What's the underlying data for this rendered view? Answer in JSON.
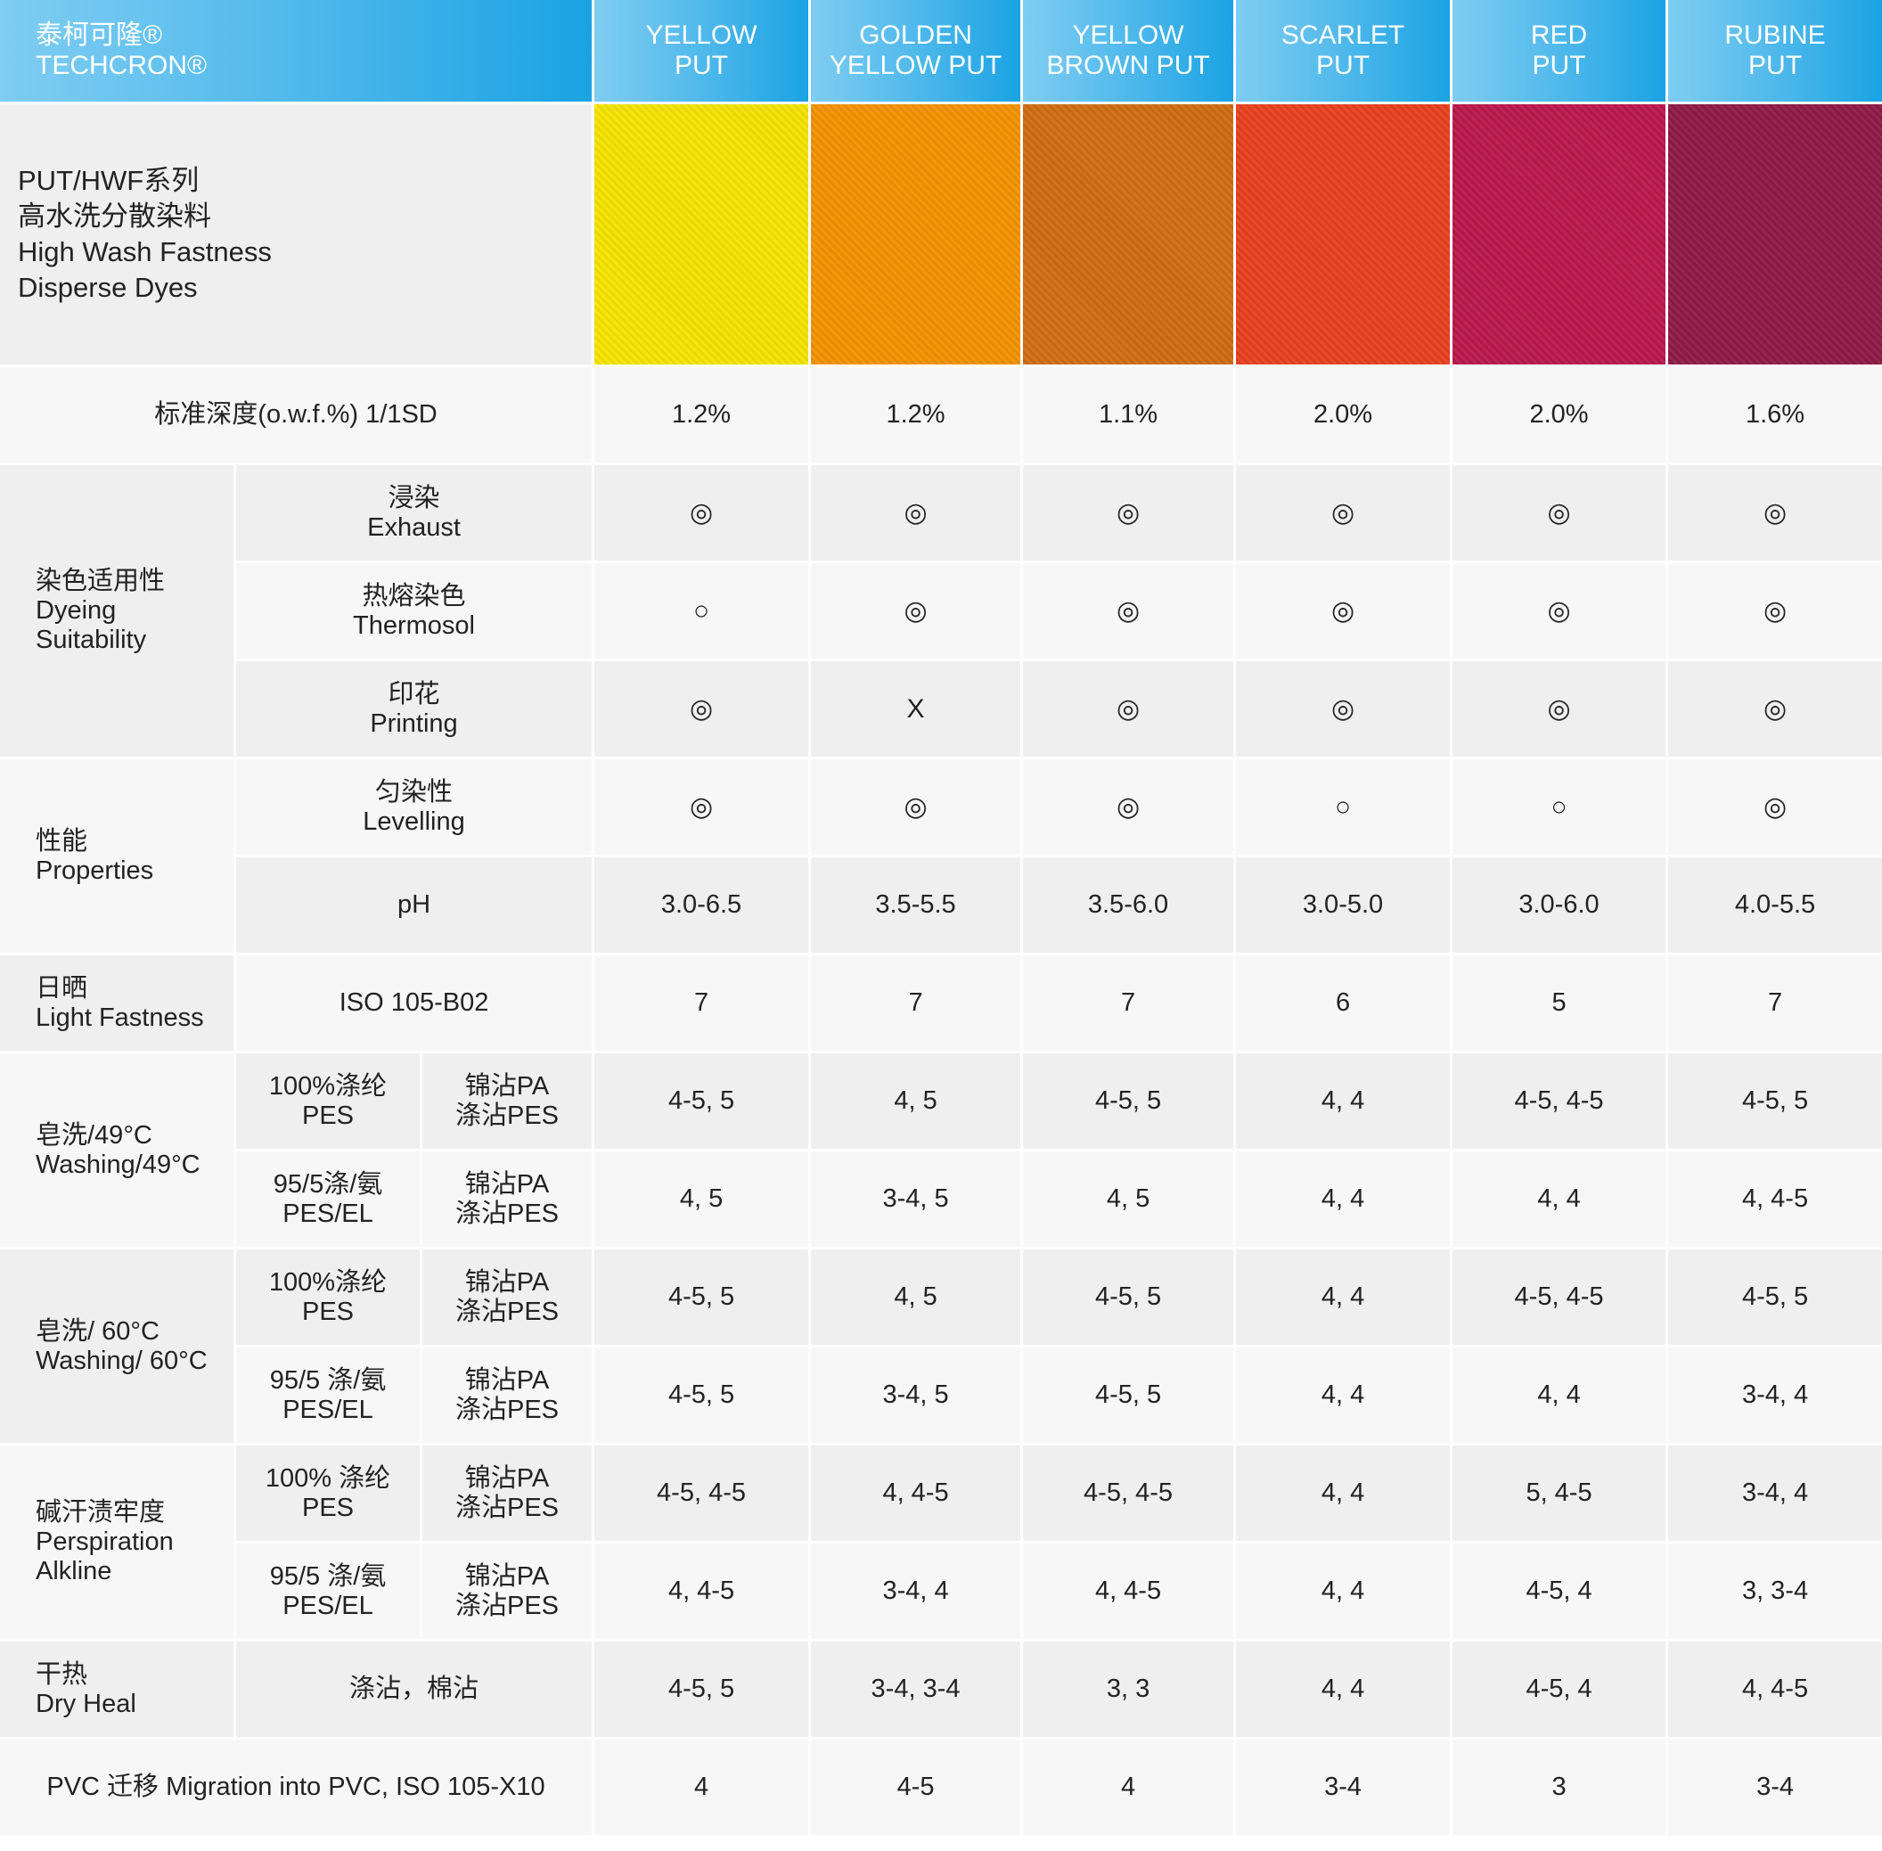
{
  "header": {
    "brand": [
      "泰柯可隆®",
      "TECHCRON®"
    ],
    "products": [
      [
        "YELLOW",
        "PUT"
      ],
      [
        "GOLDEN",
        "YELLOW PUT"
      ],
      [
        "YELLOW",
        "BROWN PUT"
      ],
      [
        "SCARLET",
        "PUT"
      ],
      [
        "RED",
        "PUT"
      ],
      [
        "RUBINE",
        "PUT"
      ]
    ]
  },
  "series_title": [
    "PUT/HWF系列",
    "高水洗分散染料",
    "High Wash Fastness",
    "Disperse Dyes"
  ],
  "swatch_colors": [
    "#f5e400",
    "#f39200",
    "#d06c12",
    "#e8401f",
    "#b9174d",
    "#8e1a45"
  ],
  "header_colors": {
    "start": "#7fcdf2",
    "end": "#1aa3e3"
  },
  "standard_depth": {
    "label": "标准深度(o.w.f.%) 1/1SD",
    "values": [
      "1.2%",
      "1.2%",
      "1.1%",
      "2.0%",
      "2.0%",
      "1.6%"
    ]
  },
  "groups": [
    {
      "label": [
        "染色适用性",
        "Dyeing",
        "Suitability"
      ],
      "rows": [
        {
          "label": [
            "浸染",
            "Exhaust"
          ],
          "values": [
            "◎",
            "◎",
            "◎",
            "◎",
            "◎",
            "◎"
          ]
        },
        {
          "label": [
            "热熔染色",
            "Thermosol"
          ],
          "values": [
            "○",
            "◎",
            "◎",
            "◎",
            "◎",
            "◎"
          ]
        },
        {
          "label": [
            "印花",
            "Printing"
          ],
          "values": [
            "◎",
            "X",
            "◎",
            "◎",
            "◎",
            "◎"
          ]
        }
      ]
    },
    {
      "label": [
        "性能",
        "Properties"
      ],
      "rows": [
        {
          "label": [
            "匀染性",
            "Levelling"
          ],
          "values": [
            "◎",
            "◎",
            "◎",
            "○",
            "○",
            "◎"
          ]
        },
        {
          "label": [
            "pH"
          ],
          "values": [
            "3.0-6.5",
            "3.5-5.5",
            "3.5-6.0",
            "3.0-5.0",
            "3.0-6.0",
            "4.0-5.5"
          ]
        }
      ]
    },
    {
      "label": [
        "日晒",
        "Light Fastness"
      ],
      "rows": [
        {
          "label": [
            "ISO 105-B02"
          ],
          "values": [
            "7",
            "7",
            "7",
            "6",
            "5",
            "7"
          ]
        }
      ]
    },
    {
      "label": [
        "皂洗/49°C",
        "Washing/49°C"
      ],
      "rows": [
        {
          "label": [
            "100%涤纶",
            "PES"
          ],
          "label2": [
            "锦沾PA",
            "涤沾PES"
          ],
          "values": [
            "4-5, 5",
            "4, 5",
            "4-5, 5",
            "4, 4",
            "4-5, 4-5",
            "4-5, 5"
          ]
        },
        {
          "label": [
            "95/5涤/氨",
            "PES/EL"
          ],
          "label2": [
            "锦沾PA",
            "涤沾PES"
          ],
          "values": [
            "4, 5",
            "3-4, 5",
            "4, 5",
            "4, 4",
            "4, 4",
            "4, 4-5"
          ]
        }
      ]
    },
    {
      "label": [
        "皂洗/ 60°C",
        "Washing/ 60°C"
      ],
      "rows": [
        {
          "label": [
            "100%涤纶",
            "PES"
          ],
          "label2": [
            "锦沾PA",
            "涤沾PES"
          ],
          "values": [
            "4-5, 5",
            "4, 5",
            "4-5, 5",
            "4, 4",
            "4-5, 4-5",
            "4-5, 5"
          ]
        },
        {
          "label": [
            "95/5 涤/氨",
            "PES/EL"
          ],
          "label2": [
            "锦沾PA",
            "涤沾PES"
          ],
          "values": [
            "4-5, 5",
            "3-4, 5",
            "4-5, 5",
            "4, 4",
            "4, 4",
            "3-4, 4"
          ]
        }
      ]
    },
    {
      "label": [
        "碱汗渍牢度",
        "Perspiration",
        "Alkline"
      ],
      "rows": [
        {
          "label": [
            "100% 涤纶",
            "PES"
          ],
          "label2": [
            "锦沾PA",
            "涤沾PES"
          ],
          "values": [
            "4-5, 4-5",
            "4, 4-5",
            "4-5, 4-5",
            "4, 4",
            "5, 4-5",
            "3-4, 4"
          ]
        },
        {
          "label": [
            "95/5 涤/氨",
            "PES/EL"
          ],
          "label2": [
            "锦沾PA",
            "涤沾PES"
          ],
          "values": [
            "4, 4-5",
            "3-4, 4",
            "4, 4-5",
            "4, 4",
            "4-5, 4",
            "3, 3-4"
          ]
        }
      ]
    },
    {
      "label": [
        "干热",
        "Dry Heal"
      ],
      "rows": [
        {
          "label": [
            "涤沾，棉沾"
          ],
          "values": [
            "4-5, 5",
            "3-4, 3-4",
            "3, 3",
            "4, 4",
            "4-5, 4",
            "4, 4-5"
          ]
        }
      ]
    }
  ],
  "pvc": {
    "label": "PVC 迁移 Migration into PVC, ISO 105-X10",
    "values": [
      "4",
      "4-5",
      "4",
      "3-4",
      "3",
      "3-4"
    ]
  }
}
